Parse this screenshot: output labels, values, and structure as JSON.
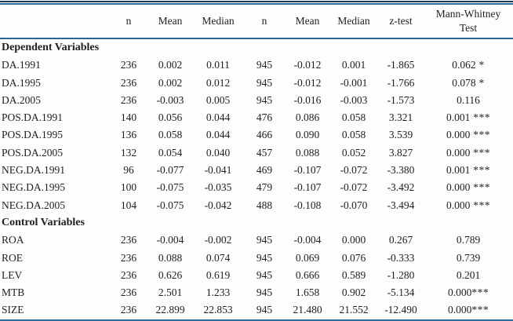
{
  "page": {
    "background": "#fdfdfb",
    "text_color": "#201f1e",
    "rule_dark": "#1d3a55",
    "rule_blue": "#2e6da4"
  },
  "header": {
    "labels": [
      "",
      "n",
      "Mean",
      "Median",
      "n",
      "Mean",
      "Median",
      "z-test",
      "Mann-Whitney Test"
    ]
  },
  "sections": [
    {
      "title": "Dependent Variables",
      "rows": [
        {
          "label": "DA.1991",
          "n1": "236",
          "mean1": "0.002",
          "median1": "0.011",
          "n2": "945",
          "mean2": "-0.012",
          "median2": "0.001",
          "ztest": "-1.865",
          "mw": "0.062",
          "sig": " *"
        },
        {
          "label": "DA.1995",
          "n1": "236",
          "mean1": "0.002",
          "median1": "0.012",
          "n2": "945",
          "mean2": "-0.012",
          "median2": "-0.001",
          "ztest": "-1.766",
          "mw": "0.078",
          "sig": " *"
        },
        {
          "label": "DA.2005",
          "n1": "236",
          "mean1": "-0.003",
          "median1": "0.005",
          "n2": "945",
          "mean2": "-0.016",
          "median2": "-0.003",
          "ztest": "-1.573",
          "mw": "0.116",
          "sig": ""
        },
        {
          "label": "POS.DA.1991",
          "n1": "140",
          "mean1": "0.056",
          "median1": "0.044",
          "n2": "476",
          "mean2": "0.086",
          "median2": "0.058",
          "ztest": "3.321",
          "mw": "0.001",
          "sig": " ***"
        },
        {
          "label": "POS.DA.1995",
          "n1": "136",
          "mean1": "0.058",
          "median1": "0.044",
          "n2": "466",
          "mean2": "0.090",
          "median2": "0.058",
          "ztest": "3.539",
          "mw": "0.000",
          "sig": " ***"
        },
        {
          "label": "POS.DA.2005",
          "n1": "132",
          "mean1": "0.054",
          "median1": "0.040",
          "n2": "457",
          "mean2": "0.088",
          "median2": "0.052",
          "ztest": "3.827",
          "mw": "0.000",
          "sig": " ***"
        },
        {
          "label": "NEG.DA.1991",
          "n1": "96",
          "mean1": "-0.077",
          "median1": "-0.041",
          "n2": "469",
          "mean2": "-0.107",
          "median2": "-0.072",
          "ztest": "-3.380",
          "mw": "0.001",
          "sig": " ***"
        },
        {
          "label": "NEG.DA.1995",
          "n1": "100",
          "mean1": "-0.075",
          "median1": "-0.035",
          "n2": "479",
          "mean2": "-0.107",
          "median2": "-0.072",
          "ztest": "-3.492",
          "mw": "0.000",
          "sig": " ***"
        },
        {
          "label": "NEG.DA.2005",
          "n1": "104",
          "mean1": "-0.075",
          "median1": "-0.042",
          "n2": "488",
          "mean2": "-0.108",
          "median2": "-0.070",
          "ztest": "-3.494",
          "mw": "0.000",
          "sig": " ***"
        }
      ]
    },
    {
      "title": "Control Variables",
      "rows": [
        {
          "label": "ROA",
          "n1": "236",
          "mean1": "-0.004",
          "median1": "-0.002",
          "n2": "945",
          "mean2": "-0.004",
          "median2": "0.000",
          "ztest": "0.267",
          "mw": "0.789",
          "sig": ""
        },
        {
          "label": "ROE",
          "n1": "236",
          "mean1": "0.088",
          "median1": "0.074",
          "n2": "945",
          "mean2": "0.069",
          "median2": "0.076",
          "ztest": "-0.333",
          "mw": "0.739",
          "sig": ""
        },
        {
          "label": "LEV",
          "n1": "236",
          "mean1": "0.626",
          "median1": "0.619",
          "n2": "945",
          "mean2": "0.666",
          "median2": "0.589",
          "ztest": "-1.280",
          "mw": "0.201",
          "sig": ""
        },
        {
          "label": "MTB",
          "n1": "236",
          "mean1": "2.501",
          "median1": "1.233",
          "n2": "945",
          "mean2": "1.658",
          "median2": "0.902",
          "ztest": "-5.134",
          "mw": "0.000",
          "sig": "***"
        },
        {
          "label": "SIZE",
          "n1": "236",
          "mean1": "22.899",
          "median1": "22.853",
          "n2": "945",
          "mean2": "21.480",
          "median2": "21.552",
          "ztest": "-12.490",
          "mw": "0.000",
          "sig": "***"
        }
      ]
    }
  ]
}
